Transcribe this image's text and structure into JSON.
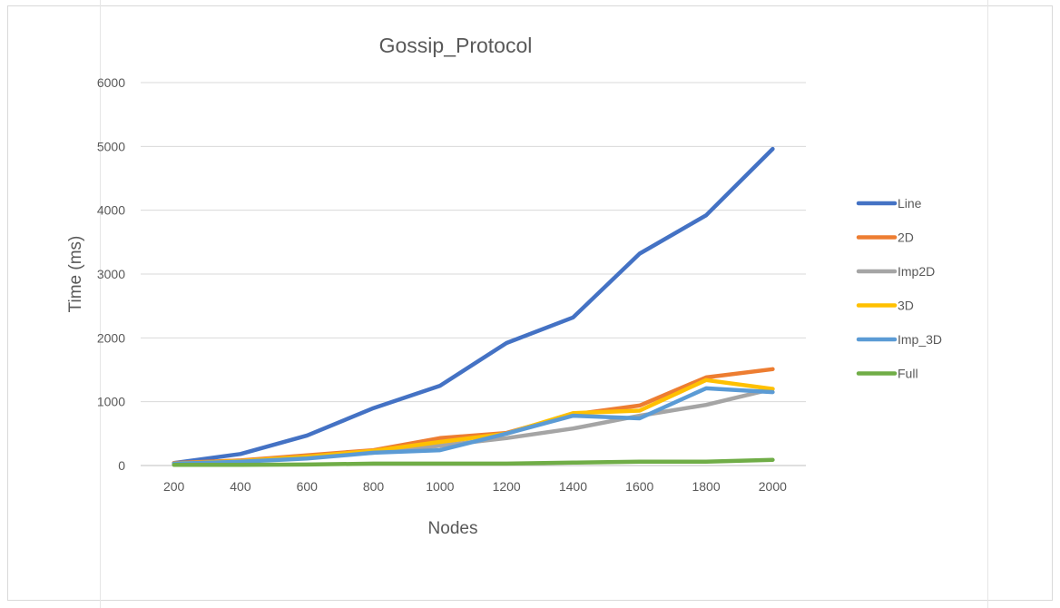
{
  "chart_data": {
    "type": "line",
    "title": "Gossip_Protocol",
    "xlabel": "Nodes",
    "ylabel": "Time (ms)",
    "categories": [
      "200",
      "400",
      "600",
      "800",
      "1000",
      "1200",
      "1400",
      "1600",
      "1800",
      "2000"
    ],
    "ylim": [
      0,
      6000
    ],
    "yticks": [
      0,
      1000,
      2000,
      3000,
      4000,
      5000,
      6000
    ],
    "grid": "horizontal",
    "legend_position": "right",
    "series": [
      {
        "name": "Line",
        "color": "#4472c4",
        "values": [
          40,
          180,
          470,
          900,
          1250,
          1920,
          2320,
          3320,
          3920,
          4960
        ]
      },
      {
        "name": "2D",
        "color": "#ed7d31",
        "values": [
          40,
          80,
          160,
          240,
          430,
          510,
          800,
          940,
          1380,
          1510
        ]
      },
      {
        "name": "Imp2D",
        "color": "#a5a5a5",
        "values": [
          30,
          70,
          140,
          200,
          310,
          430,
          580,
          780,
          950,
          1200
        ]
      },
      {
        "name": "3D",
        "color": "#ffc000",
        "values": [
          30,
          70,
          140,
          230,
          370,
          500,
          820,
          860,
          1340,
          1200
        ]
      },
      {
        "name": "Imp_3D",
        "color": "#5b9bd5",
        "values": [
          30,
          60,
          110,
          200,
          240,
          500,
          780,
          740,
          1210,
          1150
        ]
      },
      {
        "name": "Full",
        "color": "#70ad47",
        "values": [
          10,
          10,
          15,
          30,
          30,
          30,
          45,
          60,
          60,
          90
        ]
      }
    ]
  }
}
